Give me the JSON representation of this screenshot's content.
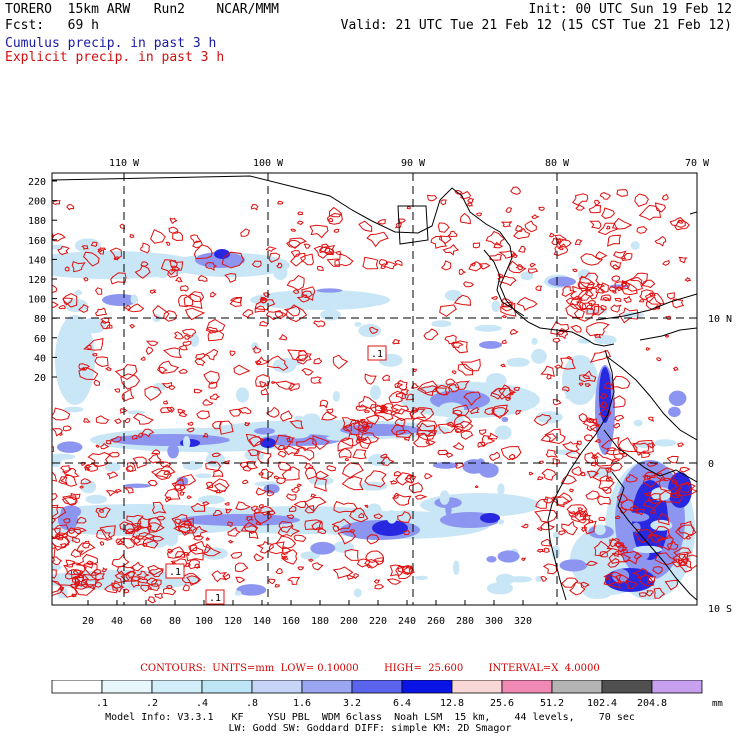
{
  "header": {
    "line1_left": "TORERO  15km ARW   Run2    NCAR/MMM",
    "line1_right": "Init: 00 UTC Sun 19 Feb 12",
    "line2_left": "Fcst:   69 h",
    "line2_right": "Valid: 21 UTC Tue 21 Feb 12 (15 CST Tue 21 Feb 12)",
    "cumulus_label": "Cumulus precip. in past 3 h",
    "explicit_label": "Explicit precip. in past 3 h"
  },
  "map": {
    "lon_labels": [
      "110 W",
      "100 W",
      "90 W",
      "80 W",
      "70 W"
    ],
    "lat_labels": [
      "10 N",
      "0",
      "10 S"
    ],
    "y_ticks": [
      "220",
      "200",
      "180",
      "160",
      "140",
      "120",
      "100",
      "80",
      "60",
      "40",
      "20"
    ],
    "x_ticks": [
      "20",
      "40",
      "60",
      "80",
      "100",
      "120",
      "140",
      "160",
      "180",
      "200",
      "220",
      "240",
      "260",
      "280",
      "300",
      "320"
    ],
    "contour_boxes": [
      ".1",
      ".1",
      ".1"
    ],
    "colors": {
      "frame": "#000000",
      "grid": "#000000",
      "coast": "#000000",
      "contour": "#e01010",
      "cumulus_light": "#c8e6f5",
      "cumulus_mid": "#8c96f0",
      "cumulus_dark": "#2828e0"
    }
  },
  "contours_line": "CONTOURS:  UNITS=mm  LOW= 0.10000        HIGH=  25.600        INTERVAL=X  4.0000",
  "colorbar": {
    "labels": [
      ".1",
      ".2",
      ".4",
      ".8",
      "1.6",
      "3.2",
      "6.4",
      "12.8",
      "25.6",
      "51.2",
      "102.4",
      "204.8"
    ],
    "unit": "mm",
    "colors": [
      "#ffffff",
      "#e8f7fc",
      "#d2eef8",
      "#bde5f5",
      "#c5d4f7",
      "#9aa6f2",
      "#5a64ec",
      "#0a14e6",
      "#fad7d7",
      "#f08ab4",
      "#b4b4b4",
      "#505050",
      "#c8a0f0"
    ]
  },
  "model_info": {
    "line1": "Model Info: V3.3.1   KF    YSU PBL  WDM 6class  Noah LSM  15 km,    44 levels,    70 sec",
    "line2": "LW: Godd SW: Goddard DIFF: simple KM: 2D Smagor"
  }
}
